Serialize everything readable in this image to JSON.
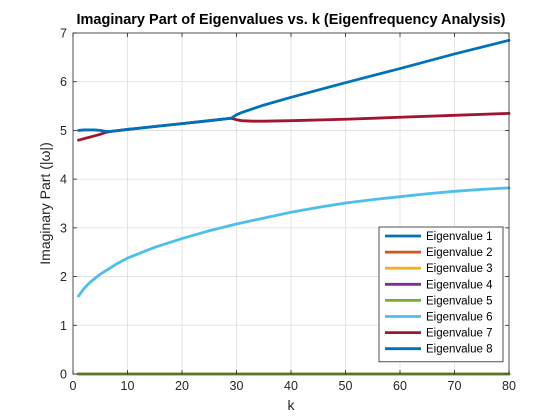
{
  "chart_data": {
    "type": "line",
    "title": "Imaginary Part of Eigenvalues vs. k (Eigenfrequency Analysis)",
    "xlabel": "k",
    "ylabel": "Imaginary Part (|ω|)",
    "xlim": [
      0,
      80
    ],
    "ylim": [
      0,
      7
    ],
    "xticks": [
      0,
      10,
      20,
      30,
      40,
      50,
      60,
      70,
      80
    ],
    "yticks": [
      0,
      1,
      2,
      3,
      4,
      5,
      6,
      7
    ],
    "grid": true,
    "legend_position": "bottom-right",
    "series": [
      {
        "name": "Eigenvalue 1",
        "color": "#0072BD",
        "x": [
          1,
          80
        ],
        "y": [
          0,
          0
        ]
      },
      {
        "name": "Eigenvalue 2",
        "color": "#D95319",
        "x": [
          1,
          80
        ],
        "y": [
          0,
          0
        ]
      },
      {
        "name": "Eigenvalue 3",
        "color": "#EDB120",
        "x": [
          1,
          80
        ],
        "y": [
          0,
          0
        ]
      },
      {
        "name": "Eigenvalue 4",
        "color": "#7E2F8E",
        "x": [
          1,
          80
        ],
        "y": [
          0,
          0
        ]
      },
      {
        "name": "Eigenvalue 5",
        "color": "#77AC30",
        "x": [
          1,
          80
        ],
        "y": [
          0,
          0
        ]
      },
      {
        "name": "Eigenvalue 6",
        "color": "#4DBEEE",
        "x": [
          1,
          2,
          3,
          5,
          8,
          10,
          15,
          20,
          25,
          30,
          35,
          40,
          45,
          50,
          55,
          60,
          65,
          70,
          75,
          80
        ],
        "y": [
          1.6,
          1.75,
          1.87,
          2.05,
          2.26,
          2.38,
          2.6,
          2.78,
          2.94,
          3.08,
          3.2,
          3.32,
          3.42,
          3.51,
          3.58,
          3.64,
          3.7,
          3.75,
          3.79,
          3.82
        ]
      },
      {
        "name": "Eigenvalue 7",
        "color": "#A2142F",
        "x": [
          1,
          2,
          3,
          4,
          5,
          6,
          7,
          10,
          15,
          20,
          25,
          29,
          30,
          31,
          33,
          35,
          40,
          50,
          60,
          70,
          80
        ],
        "y": [
          4.8,
          4.83,
          4.86,
          4.89,
          4.92,
          4.96,
          4.98,
          5.02,
          5.08,
          5.14,
          5.2,
          5.25,
          5.22,
          5.2,
          5.19,
          5.19,
          5.2,
          5.23,
          5.27,
          5.31,
          5.35
        ]
      },
      {
        "name": "Eigenvalue 8",
        "color": "#0072BD",
        "x": [
          1,
          2,
          3,
          4,
          5,
          6,
          7,
          10,
          15,
          20,
          25,
          29,
          30,
          31,
          35,
          40,
          50,
          60,
          70,
          80
        ],
        "y": [
          5.0,
          5.01,
          5.01,
          5.01,
          5.0,
          4.98,
          4.98,
          5.02,
          5.08,
          5.14,
          5.2,
          5.25,
          5.32,
          5.37,
          5.52,
          5.68,
          5.98,
          6.27,
          6.57,
          6.85
        ]
      }
    ]
  }
}
